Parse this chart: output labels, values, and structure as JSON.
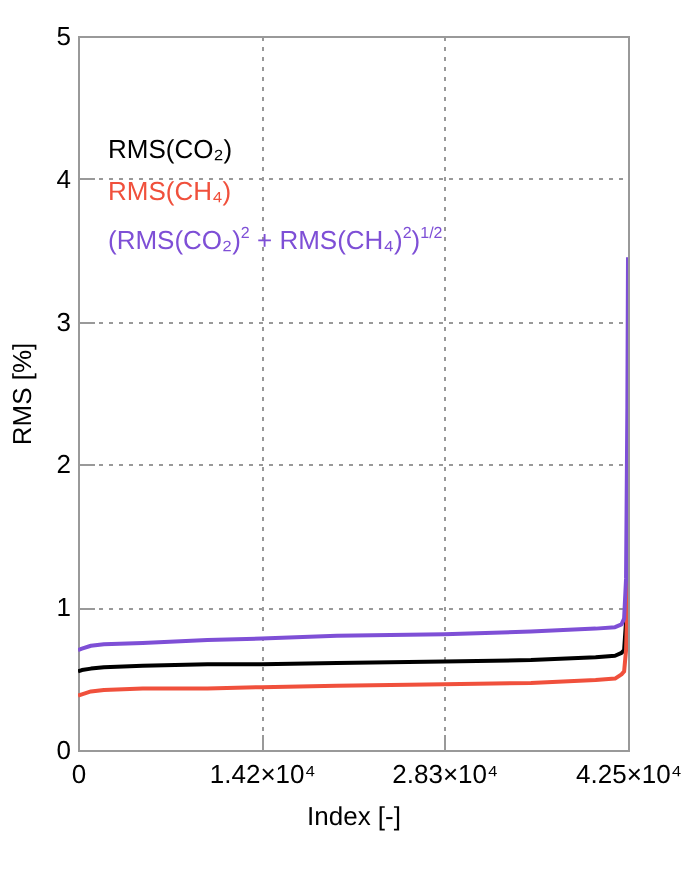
{
  "chart_data": {
    "type": "line",
    "xlabel": "Index [-]",
    "ylabel": "RMS [%]",
    "x": [
      0,
      300,
      1000,
      2000,
      5000,
      10000,
      14200,
      20000,
      28300,
      35000,
      40000,
      41500,
      42000,
      42200,
      42350,
      42450,
      42500
    ],
    "series": [
      {
        "name": "RMS(CO₂)",
        "color": "#000000",
        "values": [
          0.55,
          0.56,
          0.57,
          0.58,
          0.59,
          0.6,
          0.6,
          0.61,
          0.62,
          0.63,
          0.65,
          0.66,
          0.68,
          0.7,
          0.9,
          null,
          null
        ]
      },
      {
        "name": "RMS(CH₄)",
        "color": "#f0503c",
        "values": [
          0.38,
          0.39,
          0.41,
          0.42,
          0.43,
          0.43,
          0.44,
          0.45,
          0.46,
          0.47,
          0.49,
          0.5,
          0.53,
          0.55,
          0.7,
          1.0,
          1.2
        ]
      },
      {
        "name": "(RMS(CO₂)$^{2}$ + RMS(CH₄)$^{2}$)$^{1/2}$",
        "color": "#7e4fd6",
        "values": [
          0.7,
          0.71,
          0.73,
          0.74,
          0.75,
          0.77,
          0.78,
          0.8,
          0.81,
          0.83,
          0.85,
          0.86,
          0.88,
          0.92,
          1.2,
          2.4,
          3.45
        ]
      }
    ],
    "xlim": [
      0,
      42500
    ],
    "xticks": [
      0,
      {
        "value": 14200,
        "label": "1.42×10⁴"
      },
      {
        "value": 28300,
        "label": "2.83×10⁴"
      },
      {
        "value": 42500,
        "label": "4.25×10⁴"
      }
    ],
    "ylim": [
      0,
      5
    ],
    "yticks": [
      0,
      1,
      2,
      3,
      4,
      5
    ],
    "grid": true,
    "legend": "top left",
    "marker": "none",
    "line_style": "solid"
  }
}
